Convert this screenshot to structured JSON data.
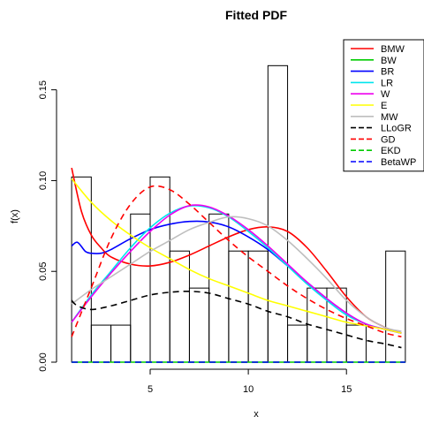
{
  "chart_data": {
    "type": "histogram+line",
    "title": "Fitted PDF",
    "xlabel": "x",
    "ylabel": "f(x)",
    "xlim": [
      0.5,
      18.5
    ],
    "ylim": [
      0,
      0.18
    ],
    "x_ticks": [
      {
        "v": 5,
        "label": "5"
      },
      {
        "v": 10,
        "label": "10"
      },
      {
        "v": 15,
        "label": "15"
      }
    ],
    "y_ticks": [
      {
        "v": 0.0,
        "label": "0.00"
      },
      {
        "v": 0.05,
        "label": "0.05"
      },
      {
        "v": 0.1,
        "label": "0.10"
      },
      {
        "v": 0.15,
        "label": "0.15"
      }
    ],
    "histogram": {
      "bin_width": 1,
      "bins": [
        {
          "left": 1,
          "value": 0.102
        },
        {
          "left": 2,
          "value": 0.0204
        },
        {
          "left": 3,
          "value": 0.0204
        },
        {
          "left": 4,
          "value": 0.0816
        },
        {
          "left": 5,
          "value": 0.102
        },
        {
          "left": 6,
          "value": 0.0612
        },
        {
          "left": 7,
          "value": 0.0408
        },
        {
          "left": 8,
          "value": 0.0816
        },
        {
          "left": 9,
          "value": 0.0612
        },
        {
          "left": 10,
          "value": 0.0612
        },
        {
          "left": 11,
          "value": 0.1633
        },
        {
          "left": 12,
          "value": 0.0204
        },
        {
          "left": 13,
          "value": 0.0408
        },
        {
          "left": 14,
          "value": 0.0408
        },
        {
          "left": 15,
          "value": 0.0204
        },
        {
          "left": 16,
          "value": 0.0
        },
        {
          "left": 17,
          "value": 0.0612
        }
      ]
    },
    "series": [
      {
        "name": "BMW",
        "color": "#ff0000",
        "dash": "solid",
        "x": [
          1,
          1.5,
          2,
          2.5,
          3,
          4,
          5,
          6,
          7,
          8,
          9,
          10,
          11,
          12,
          13,
          14,
          15,
          16,
          17,
          17.8
        ],
        "y": [
          0.107,
          0.083,
          0.07,
          0.063,
          0.058,
          0.054,
          0.053,
          0.055,
          0.059,
          0.064,
          0.069,
          0.073,
          0.0745,
          0.072,
          0.063,
          0.05,
          0.036,
          0.025,
          0.019,
          0.016
        ]
      },
      {
        "name": "BW",
        "color": "#00cc00",
        "dash": "solid",
        "x": [
          1,
          18
        ],
        "y": [
          0,
          0
        ]
      },
      {
        "name": "BR",
        "color": "#0000ff",
        "dash": "solid",
        "x": [
          1,
          1.3,
          1.7,
          2,
          2.5,
          3,
          4,
          5,
          6,
          7,
          8,
          9,
          10,
          11,
          12,
          13,
          14,
          15,
          16,
          17,
          17.8
        ],
        "y": [
          0.064,
          0.066,
          0.061,
          0.06,
          0.06,
          0.062,
          0.068,
          0.073,
          0.076,
          0.0775,
          0.0772,
          0.0745,
          0.069,
          0.062,
          0.053,
          0.044,
          0.035,
          0.027,
          0.021,
          0.018,
          0.016
        ]
      },
      {
        "name": "LR",
        "color": "#00e5ee",
        "dash": "solid",
        "x": [
          1,
          2,
          3,
          4,
          5,
          6,
          7,
          8,
          9,
          10,
          11,
          12,
          13,
          14,
          15,
          16,
          17,
          17.8
        ],
        "y": [
          0.022,
          0.037,
          0.05,
          0.063,
          0.074,
          0.082,
          0.086,
          0.085,
          0.08,
          0.072,
          0.063,
          0.053,
          0.043,
          0.034,
          0.026,
          0.021,
          0.018,
          0.016
        ]
      },
      {
        "name": "W",
        "color": "#ee00ee",
        "dash": "solid",
        "x": [
          1,
          2,
          3,
          4,
          5,
          6,
          7,
          8,
          9,
          10,
          11,
          12,
          13,
          14,
          15,
          16,
          17,
          17.8
        ],
        "y": [
          0.022,
          0.036,
          0.049,
          0.061,
          0.072,
          0.081,
          0.0862,
          0.0855,
          0.0805,
          0.073,
          0.064,
          0.054,
          0.044,
          0.035,
          0.027,
          0.021,
          0.018,
          0.016
        ]
      },
      {
        "name": "E",
        "color": "#ffff00",
        "dash": "solid",
        "x": [
          1,
          2,
          3,
          4,
          5,
          6,
          7,
          8,
          9,
          10,
          11,
          12,
          13,
          14,
          15,
          16,
          17,
          17.8
        ],
        "y": [
          0.101,
          0.088,
          0.078,
          0.07,
          0.063,
          0.057,
          0.051,
          0.046,
          0.042,
          0.038,
          0.034,
          0.031,
          0.028,
          0.025,
          0.022,
          0.02,
          0.018,
          0.016
        ]
      },
      {
        "name": "MW",
        "color": "#bebebe",
        "dash": "solid",
        "x": [
          1,
          2,
          3,
          4,
          5,
          6,
          7,
          8,
          9,
          10,
          11,
          12,
          13,
          14,
          15,
          16,
          17,
          17.8
        ],
        "y": [
          0.032,
          0.04,
          0.047,
          0.054,
          0.061,
          0.067,
          0.073,
          0.077,
          0.08,
          0.079,
          0.075,
          0.067,
          0.057,
          0.046,
          0.034,
          0.025,
          0.019,
          0.017
        ]
      },
      {
        "name": "LLoGR",
        "color": "#000000",
        "dash": "dashed",
        "x": [
          1,
          1.3,
          2,
          3,
          4,
          5,
          6,
          7,
          8,
          9,
          10,
          11,
          12,
          13,
          14,
          15,
          16,
          17,
          17.8
        ],
        "y": [
          0.034,
          0.031,
          0.029,
          0.031,
          0.034,
          0.037,
          0.0385,
          0.039,
          0.038,
          0.035,
          0.032,
          0.028,
          0.025,
          0.021,
          0.018,
          0.015,
          0.012,
          0.01,
          0.008
        ]
      },
      {
        "name": "GD",
        "color": "#ff0000",
        "dash": "dashed",
        "x": [
          1,
          2,
          3,
          4,
          5,
          6,
          7,
          8,
          9,
          10,
          11,
          12,
          13,
          14,
          15,
          16,
          17,
          17.8
        ],
        "y": [
          0.014,
          0.041,
          0.068,
          0.087,
          0.0965,
          0.095,
          0.087,
          0.077,
          0.067,
          0.058,
          0.05,
          0.042,
          0.035,
          0.029,
          0.024,
          0.02,
          0.016,
          0.014
        ]
      },
      {
        "name": "EKD",
        "color": "#00cc00",
        "dash": "dashed",
        "x": [
          1,
          18
        ],
        "y": [
          0,
          0
        ]
      },
      {
        "name": "BetaWP",
        "color": "#0000ff",
        "dash": "dashed",
        "x": [
          1,
          18
        ],
        "y": [
          0,
          0
        ]
      }
    ],
    "legend": {
      "position": "top-right",
      "items": [
        "BMW",
        "BW",
        "BR",
        "LR",
        "W",
        "E",
        "MW",
        "LLoGR",
        "GD",
        "EKD",
        "BetaWP"
      ]
    }
  }
}
